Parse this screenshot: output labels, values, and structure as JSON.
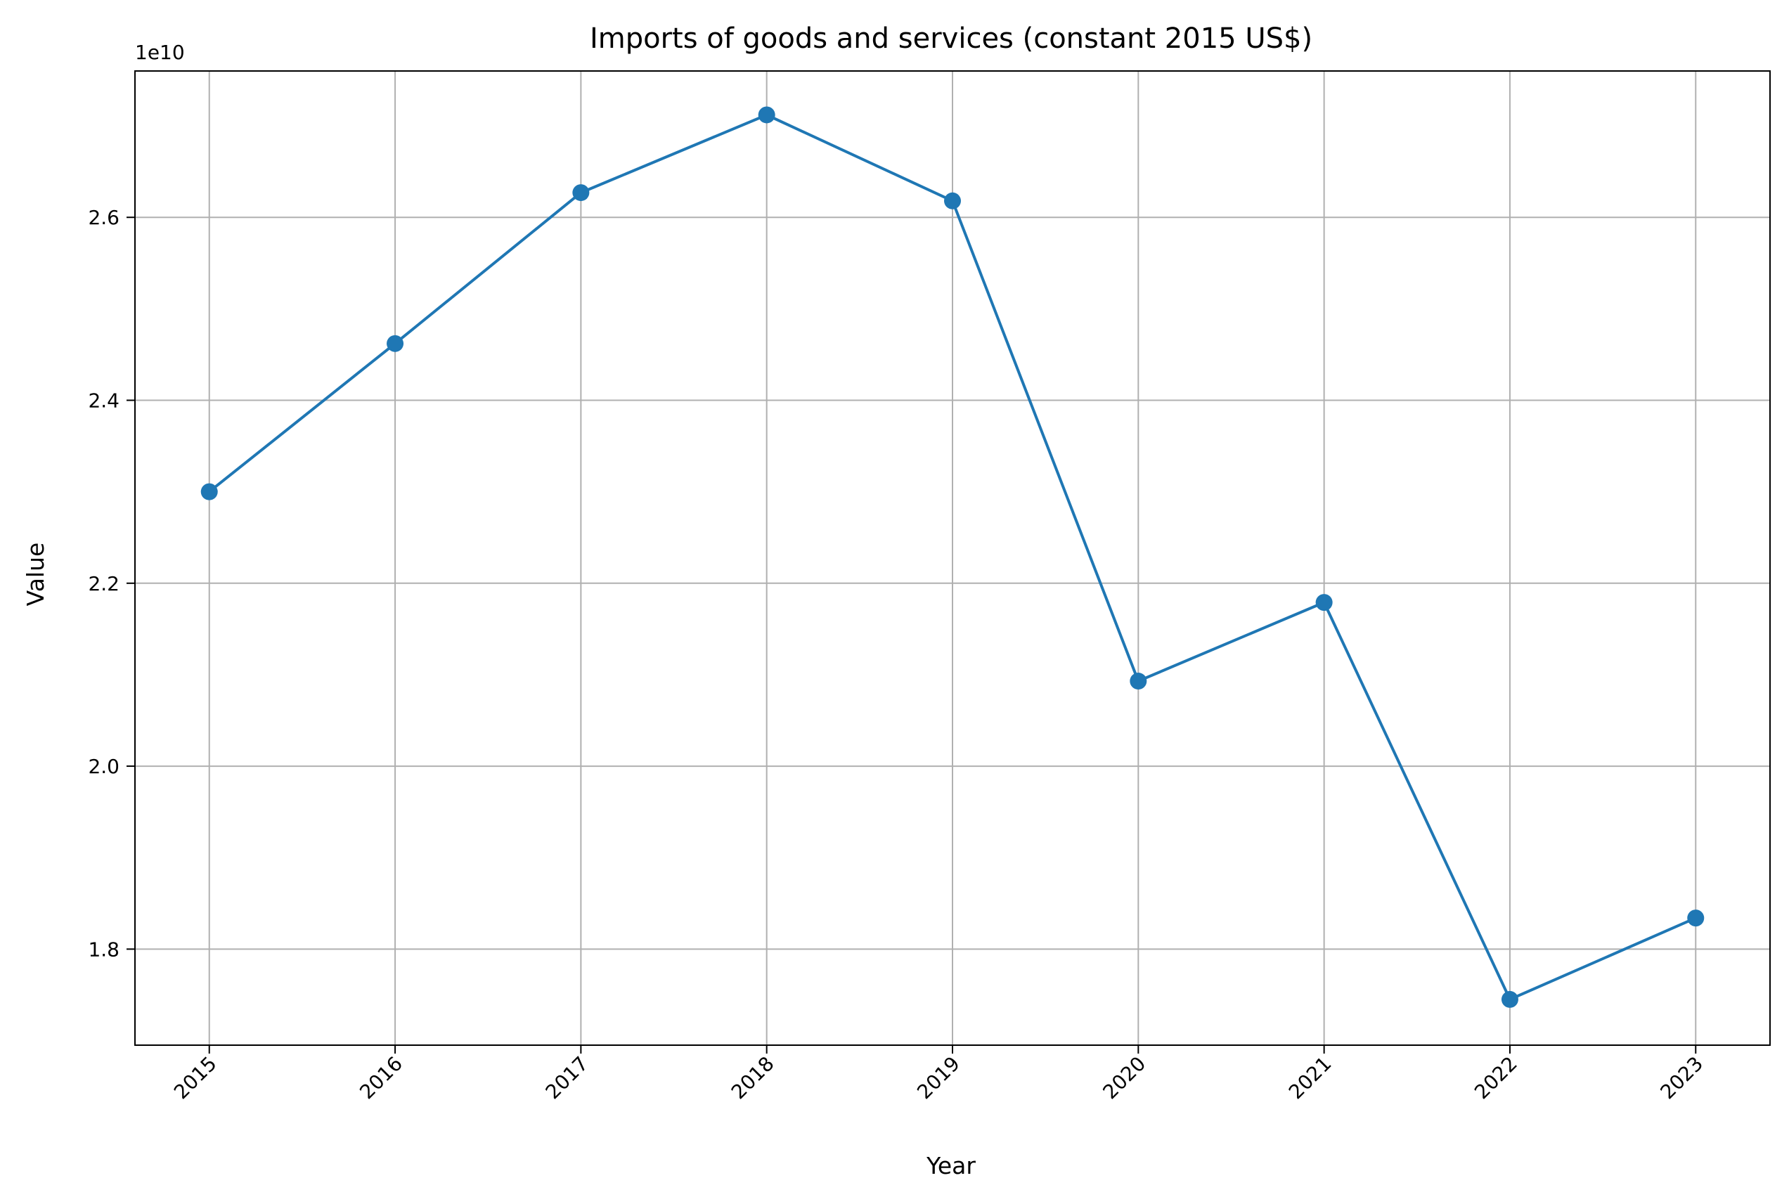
{
  "chart_data": {
    "type": "line",
    "title": "Imports of goods and services (constant 2015 US$)",
    "xlabel": "Year",
    "ylabel": "Value",
    "offset_label": "1e10",
    "x": [
      2015,
      2016,
      2017,
      2018,
      2019,
      2020,
      2021,
      2022,
      2023
    ],
    "series": [
      {
        "values": [
          23000000000,
          24620000000,
          26270000000,
          27120000000,
          26180000000,
          20930000000,
          21790000000,
          17450000000,
          18340000000
        ],
        "color": "#1f77b4",
        "marker": "circle"
      }
    ],
    "xlim": [
      2014.6,
      2023.4
    ],
    "ylim": [
      16950000000,
      27600000000
    ],
    "yticks": [
      18000000000,
      20000000000,
      22000000000,
      24000000000,
      26000000000
    ],
    "ytick_labels": [
      "1.8",
      "2.0",
      "2.2",
      "2.4",
      "2.6"
    ],
    "xtick_labels": [
      "2015",
      "2016",
      "2017",
      "2018",
      "2019",
      "2020",
      "2021",
      "2022",
      "2023"
    ],
    "xtick_rotation": 45,
    "grid": true,
    "grid_color": "#b0b0b0",
    "legend": false
  }
}
